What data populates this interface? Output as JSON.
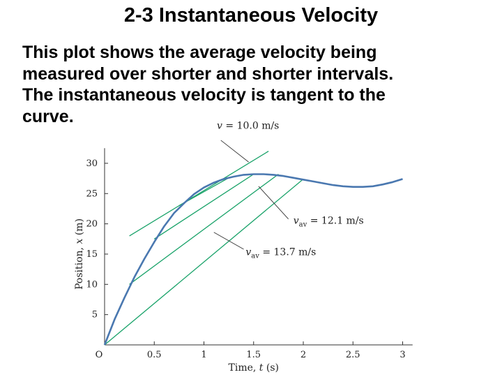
{
  "slide": {
    "title": "2-3 Instantaneous Velocity",
    "body_lines": [
      "This plot shows the average velocity being",
      "measured over shorter and shorter intervals.",
      "The instantaneous velocity is tangent to the",
      "curve."
    ]
  },
  "chart_data": {
    "type": "line",
    "xlabel_var": "t",
    "xlabel_unit": "(s)",
    "xlabel_prefix": "Time,",
    "ylabel_prefix": "Position,",
    "ylabel_var": "x",
    "ylabel_unit": "(m)",
    "origin_label": "O",
    "xlim": [
      0,
      3.1
    ],
    "ylim": [
      0,
      32
    ],
    "x_ticks": [
      0.5,
      1,
      1.5,
      2,
      2.5,
      3
    ],
    "x_tick_labels": [
      "0.5",
      "1",
      "1.5",
      "2",
      "2.5",
      "3"
    ],
    "y_ticks": [
      5,
      10,
      15,
      20,
      25,
      30
    ],
    "y_tick_labels": [
      "5",
      "10",
      "15",
      "20",
      "25",
      "30"
    ],
    "curve": {
      "color": "#4a78b0",
      "x": [
        0,
        0.1,
        0.2,
        0.3,
        0.4,
        0.5,
        0.6,
        0.7,
        0.8,
        0.9,
        1.0,
        1.1,
        1.2,
        1.3,
        1.4,
        1.5,
        1.6,
        1.7,
        1.8,
        1.9,
        2.0,
        2.1,
        2.2,
        2.3,
        2.4,
        2.5,
        2.6,
        2.7,
        2.8,
        2.9,
        3.0
      ],
      "y": [
        0,
        4.2,
        7.8,
        11.2,
        14.2,
        17.0,
        19.6,
        21.8,
        23.4,
        24.9,
        26.0,
        26.8,
        27.4,
        27.8,
        28.1,
        28.2,
        28.2,
        28.1,
        27.9,
        27.6,
        27.3,
        27.0,
        26.7,
        26.4,
        26.2,
        26.1,
        26.1,
        26.2,
        26.5,
        26.9,
        27.4
      ]
    },
    "secants": [
      {
        "x": [
          0,
          2.0
        ],
        "y": [
          0,
          27.4
        ],
        "color": "#1aa36a"
      },
      {
        "x": [
          0.25,
          1.75
        ],
        "y": [
          10.0,
          28.2
        ],
        "color": "#1aa36a"
      },
      {
        "x": [
          0.5,
          1.5
        ],
        "y": [
          17.5,
          28.2
        ],
        "color": "#1aa36a"
      },
      {
        "x": [
          0.75,
          1.25
        ],
        "y": [
          23.0,
          27.6
        ],
        "color": "#1aa36a"
      }
    ],
    "tangent": {
      "x": [
        0.25,
        1.65
      ],
      "y": [
        18.0,
        32.0
      ],
      "color": "#1aa36a"
    },
    "annotations": [
      {
        "var": "v",
        "sub": "",
        "text": " = 10.0 m/s",
        "label_at": [
          1.13,
          35.7
        ],
        "arrow_from": [
          1.17,
          33.8
        ],
        "arrow_to": [
          1.45,
          30.2
        ]
      },
      {
        "var": "v",
        "sub": "av",
        "text": " = 12.1 m/s",
        "label_at": [
          1.9,
          20.0
        ],
        "arrow_from": [
          1.85,
          20.8
        ],
        "arrow_to": [
          1.55,
          26.2
        ]
      },
      {
        "var": "v",
        "sub": "av",
        "text": " = 13.7 m/s",
        "label_at": [
          1.42,
          14.8
        ],
        "arrow_from": [
          1.4,
          15.8
        ],
        "arrow_to": [
          1.1,
          18.6
        ]
      }
    ]
  }
}
